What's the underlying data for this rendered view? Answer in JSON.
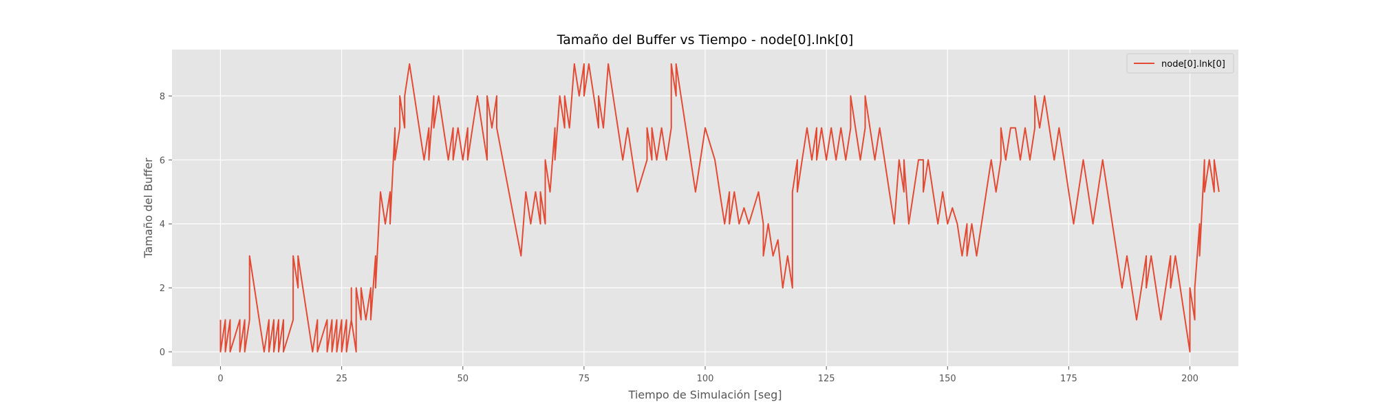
{
  "chart_data": {
    "type": "line",
    "title": "Tamaño del Buffer vs Tiempo - node[0].lnk[0]",
    "xlabel": "Tiempo de Simulación [seg]",
    "ylabel": "Tamaño del Buffer",
    "xlim": [
      -10,
      210
    ],
    "ylim": [
      -0.45,
      9.45
    ],
    "xticks": [
      "0",
      "25",
      "50",
      "75",
      "100",
      "125",
      "150",
      "175",
      "200"
    ],
    "yticks": [
      "0",
      "2",
      "4",
      "6",
      "8"
    ],
    "grid": true,
    "legend_position": "top-right",
    "series": [
      {
        "name": "node[0].lnk[0]",
        "color": "#E24A33",
        "points": [
          [
            0,
            1
          ],
          [
            0,
            0
          ],
          [
            1,
            1
          ],
          [
            1,
            0
          ],
          [
            2,
            1
          ],
          [
            2,
            0
          ],
          [
            3,
            0.5
          ],
          [
            4,
            1
          ],
          [
            4,
            0
          ],
          [
            5,
            1
          ],
          [
            5,
            0
          ],
          [
            6,
            1
          ],
          [
            6,
            3
          ],
          [
            7,
            2
          ],
          [
            8,
            1
          ],
          [
            9,
            0
          ],
          [
            10,
            1
          ],
          [
            10,
            0
          ],
          [
            11,
            1
          ],
          [
            11,
            0
          ],
          [
            12,
            1
          ],
          [
            12,
            0
          ],
          [
            13,
            1
          ],
          [
            13,
            0
          ],
          [
            14,
            0.5
          ],
          [
            15,
            1
          ],
          [
            15,
            3
          ],
          [
            16,
            2
          ],
          [
            16,
            3
          ],
          [
            17,
            2
          ],
          [
            18,
            1
          ],
          [
            19,
            0
          ],
          [
            20,
            1
          ],
          [
            20,
            0
          ],
          [
            21,
            0.5
          ],
          [
            22,
            1
          ],
          [
            22,
            0
          ],
          [
            23,
            1
          ],
          [
            23,
            0
          ],
          [
            24,
            1
          ],
          [
            24,
            0
          ],
          [
            25,
            1
          ],
          [
            25,
            0
          ],
          [
            26,
            1
          ],
          [
            26,
            0
          ],
          [
            27,
            1
          ],
          [
            27,
            2
          ],
          [
            27,
            1
          ],
          [
            28,
            0
          ],
          [
            28,
            2
          ],
          [
            29,
            1
          ],
          [
            29,
            2
          ],
          [
            30,
            1
          ],
          [
            31,
            2
          ],
          [
            31,
            1
          ],
          [
            32,
            3
          ],
          [
            32,
            2
          ],
          [
            33,
            5
          ],
          [
            34,
            4
          ],
          [
            35,
            5
          ],
          [
            35,
            4
          ],
          [
            36,
            7
          ],
          [
            36,
            6
          ],
          [
            37,
            7
          ],
          [
            37,
            8
          ],
          [
            38,
            7
          ],
          [
            38,
            8
          ],
          [
            39,
            9
          ],
          [
            40,
            8
          ],
          [
            41,
            7
          ],
          [
            42,
            6
          ],
          [
            43,
            7
          ],
          [
            43,
            6
          ],
          [
            44,
            8
          ],
          [
            44,
            7
          ],
          [
            45,
            8
          ],
          [
            46,
            7
          ],
          [
            47,
            6
          ],
          [
            48,
            7
          ],
          [
            48,
            6
          ],
          [
            49,
            7
          ],
          [
            50,
            6
          ],
          [
            51,
            7
          ],
          [
            51,
            6
          ],
          [
            52,
            7
          ],
          [
            53,
            8
          ],
          [
            54,
            7
          ],
          [
            55,
            6
          ],
          [
            55,
            8
          ],
          [
            56,
            7
          ],
          [
            57,
            8
          ],
          [
            57,
            7
          ],
          [
            62,
            3
          ],
          [
            63,
            5
          ],
          [
            64,
            4
          ],
          [
            65,
            5
          ],
          [
            66,
            4
          ],
          [
            66,
            5
          ],
          [
            67,
            4
          ],
          [
            67,
            6
          ],
          [
            68,
            5
          ],
          [
            69,
            7
          ],
          [
            69,
            6
          ],
          [
            70,
            8
          ],
          [
            71,
            7
          ],
          [
            71,
            8
          ],
          [
            72,
            7
          ],
          [
            73,
            9
          ],
          [
            74,
            8
          ],
          [
            75,
            9
          ],
          [
            75,
            8
          ],
          [
            76,
            9
          ],
          [
            77,
            8
          ],
          [
            78,
            7
          ],
          [
            78,
            8
          ],
          [
            79,
            7
          ],
          [
            80,
            9
          ],
          [
            81,
            8
          ],
          [
            83,
            6
          ],
          [
            84,
            7
          ],
          [
            85,
            6
          ],
          [
            86,
            5
          ],
          [
            88,
            6
          ],
          [
            88,
            7
          ],
          [
            89,
            6
          ],
          [
            89,
            7
          ],
          [
            90,
            6
          ],
          [
            91,
            7
          ],
          [
            92,
            6
          ],
          [
            93,
            7
          ],
          [
            93,
            8
          ],
          [
            93,
            9
          ],
          [
            94,
            8
          ],
          [
            94,
            9
          ],
          [
            97,
            6
          ],
          [
            98,
            5
          ],
          [
            99,
            6
          ],
          [
            100,
            7
          ],
          [
            102,
            6
          ],
          [
            103,
            5
          ],
          [
            104,
            4
          ],
          [
            105,
            5
          ],
          [
            105,
            4
          ],
          [
            106,
            5
          ],
          [
            107,
            4
          ],
          [
            108,
            4.5
          ],
          [
            109,
            4
          ],
          [
            110,
            4.5
          ],
          [
            111,
            5
          ],
          [
            112,
            4
          ],
          [
            112,
            3
          ],
          [
            113,
            4
          ],
          [
            114,
            3
          ],
          [
            115,
            3.5
          ],
          [
            116,
            2
          ],
          [
            117,
            3
          ],
          [
            118,
            2
          ],
          [
            118,
            5
          ],
          [
            119,
            6
          ],
          [
            119,
            5
          ],
          [
            120,
            6
          ],
          [
            121,
            7
          ],
          [
            122,
            6
          ],
          [
            123,
            7
          ],
          [
            123,
            6
          ],
          [
            124,
            7
          ],
          [
            125,
            6
          ],
          [
            126,
            7
          ],
          [
            127,
            6
          ],
          [
            128,
            7
          ],
          [
            129,
            6
          ],
          [
            130,
            7
          ],
          [
            130,
            8
          ],
          [
            131,
            7
          ],
          [
            132,
            6
          ],
          [
            133,
            7
          ],
          [
            133,
            8
          ],
          [
            134,
            7
          ],
          [
            135,
            6
          ],
          [
            136,
            7
          ],
          [
            137,
            6
          ],
          [
            138,
            5
          ],
          [
            139,
            4
          ],
          [
            140,
            6
          ],
          [
            141,
            5
          ],
          [
            141,
            6
          ],
          [
            142,
            4
          ],
          [
            143,
            5
          ],
          [
            144,
            6
          ],
          [
            145,
            6
          ],
          [
            145,
            5
          ],
          [
            146,
            6
          ],
          [
            147,
            5
          ],
          [
            148,
            4
          ],
          [
            149,
            5
          ],
          [
            150,
            4
          ],
          [
            151,
            4.5
          ],
          [
            152,
            4
          ],
          [
            153,
            3
          ],
          [
            154,
            4
          ],
          [
            154,
            3
          ],
          [
            155,
            4
          ],
          [
            156,
            3
          ],
          [
            157,
            4
          ],
          [
            158,
            5
          ],
          [
            159,
            6
          ],
          [
            160,
            5
          ],
          [
            161,
            6
          ],
          [
            161,
            7
          ],
          [
            162,
            6
          ],
          [
            163,
            7
          ],
          [
            164,
            7
          ],
          [
            165,
            6
          ],
          [
            166,
            7
          ],
          [
            167,
            6
          ],
          [
            168,
            7
          ],
          [
            168,
            8
          ],
          [
            169,
            7
          ],
          [
            170,
            8
          ],
          [
            171,
            7
          ],
          [
            172,
            6
          ],
          [
            173,
            7
          ],
          [
            174,
            6
          ],
          [
            175,
            5
          ],
          [
            176,
            4
          ],
          [
            177,
            5
          ],
          [
            178,
            6
          ],
          [
            179,
            5
          ],
          [
            180,
            4
          ],
          [
            181,
            5
          ],
          [
            182,
            6
          ],
          [
            183,
            5
          ],
          [
            184,
            4
          ],
          [
            185,
            3
          ],
          [
            186,
            2
          ],
          [
            187,
            3
          ],
          [
            188,
            2
          ],
          [
            189,
            1
          ],
          [
            190,
            2
          ],
          [
            191,
            3
          ],
          [
            191,
            2
          ],
          [
            192,
            3
          ],
          [
            193,
            2
          ],
          [
            194,
            1
          ],
          [
            195,
            2
          ],
          [
            196,
            3
          ],
          [
            196,
            2
          ],
          [
            197,
            3
          ],
          [
            198,
            2
          ],
          [
            199,
            1
          ],
          [
            200,
            0
          ],
          [
            200,
            2
          ],
          [
            201,
            1
          ],
          [
            201,
            2
          ],
          [
            202,
            4
          ],
          [
            202,
            3
          ],
          [
            203,
            6
          ],
          [
            203,
            5
          ],
          [
            204,
            6
          ],
          [
            205,
            5
          ],
          [
            205,
            6
          ],
          [
            206,
            5
          ]
        ]
      }
    ]
  }
}
